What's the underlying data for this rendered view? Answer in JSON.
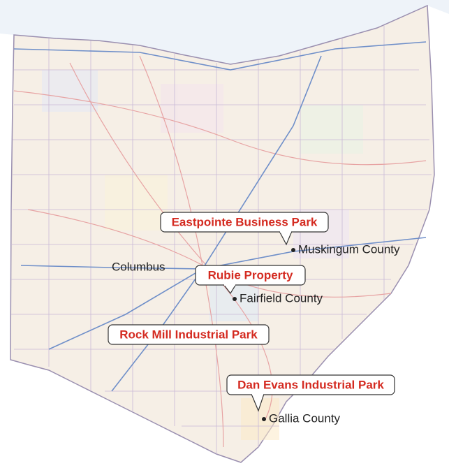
{
  "map": {
    "city": "Columbus",
    "callouts": [
      {
        "label": "Eastpointe Business Park",
        "county": "Muskingum County"
      },
      {
        "label": "Rubie Property",
        "county": "Fairfield County"
      },
      {
        "label": "Rock Mill Industrial Park"
      },
      {
        "label": "Dan Evans Industrial Park",
        "county": "Gallia County"
      }
    ]
  }
}
